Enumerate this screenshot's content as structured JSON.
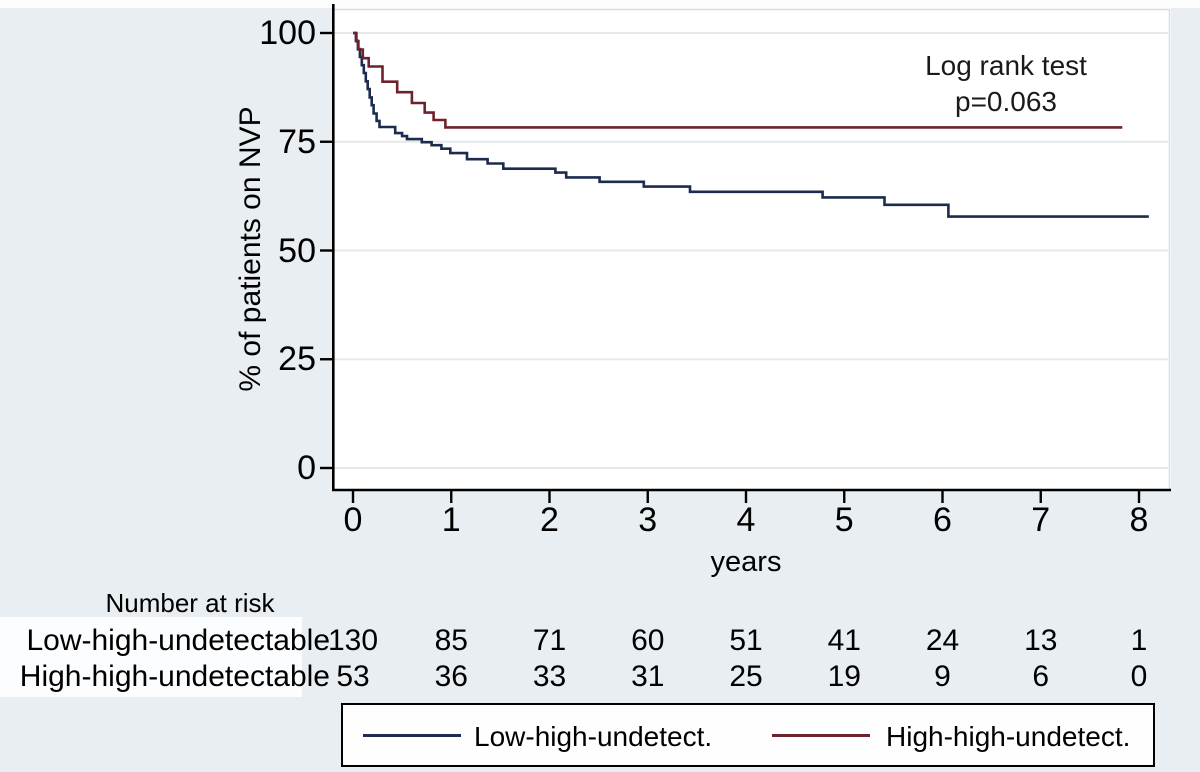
{
  "figure": {
    "background": "#e9eef2",
    "plot_background": "#ffffff"
  },
  "chart_data": {
    "type": "line",
    "subtype": "kaplan-meier-step",
    "title": "",
    "xlabel": "years",
    "ylabel": "% of patients on NVP",
    "xlim": [
      0,
      8.33
    ],
    "ylim": [
      0,
      100
    ],
    "x_ticks": [
      0,
      1,
      2,
      3,
      4,
      5,
      6,
      7,
      8
    ],
    "y_ticks": [
      0,
      25,
      50,
      75,
      100
    ],
    "grid": "horizontal-only",
    "legend_position": "bottom",
    "annotation": {
      "line1": "Log rank test",
      "line2": "p=0.063"
    },
    "colors": {
      "plot_bg": "#ffffff",
      "gridline": "#e5e9ec",
      "frame": "#d9dee3",
      "axis": "#000000"
    },
    "series": [
      {
        "name": "Low-high-undetect.",
        "color": "#1c2b4e",
        "points": [
          [
            0,
            100
          ],
          [
            0.03,
            98.2
          ],
          [
            0.05,
            96.3
          ],
          [
            0.07,
            94.5
          ],
          [
            0.09,
            92.6
          ],
          [
            0.11,
            90.8
          ],
          [
            0.13,
            88.9
          ],
          [
            0.15,
            87.1
          ],
          [
            0.17,
            85.2
          ],
          [
            0.19,
            83.4
          ],
          [
            0.21,
            81.5
          ],
          [
            0.24,
            79.8
          ],
          [
            0.27,
            78.4
          ],
          [
            0.43,
            77.0
          ],
          [
            0.5,
            76.3
          ],
          [
            0.55,
            75.6
          ],
          [
            0.7,
            74.9
          ],
          [
            0.8,
            74.2
          ],
          [
            0.9,
            73.4
          ],
          [
            0.99,
            72.4
          ],
          [
            1.16,
            71.0
          ],
          [
            1.37,
            70.0
          ],
          [
            1.53,
            68.8
          ],
          [
            2.06,
            67.9
          ],
          [
            2.17,
            66.8
          ],
          [
            2.51,
            65.8
          ],
          [
            2.96,
            64.7
          ],
          [
            3.43,
            63.5
          ],
          [
            4.78,
            62.2
          ],
          [
            5.41,
            60.5
          ],
          [
            6.06,
            57.8
          ],
          [
            8.1,
            57.8
          ]
        ]
      },
      {
        "name": "High-high-undetect.",
        "color": "#6e222e",
        "points": [
          [
            0,
            100
          ],
          [
            0.035,
            98.1
          ],
          [
            0.055,
            96.2
          ],
          [
            0.1,
            94.2
          ],
          [
            0.16,
            92.3
          ],
          [
            0.3,
            88.8
          ],
          [
            0.45,
            86.4
          ],
          [
            0.6,
            83.9
          ],
          [
            0.73,
            81.7
          ],
          [
            0.82,
            80.0
          ],
          [
            0.94,
            78.3
          ],
          [
            7.83,
            78.3
          ]
        ]
      }
    ]
  },
  "risk_table": {
    "title": "Number at risk",
    "rows": [
      {
        "label": "Low-high-undetectable",
        "values": [
          130,
          85,
          71,
          60,
          51,
          41,
          24,
          13,
          1
        ]
      },
      {
        "label": "High-high-undetectable",
        "values": [
          53,
          36,
          33,
          31,
          25,
          19,
          9,
          6,
          0
        ]
      }
    ]
  },
  "legend": {
    "items": [
      {
        "label": "Low-high-undetect.",
        "color": "#1c2b4e"
      },
      {
        "label": "High-high-undetect.",
        "color": "#6e222e"
      }
    ]
  }
}
